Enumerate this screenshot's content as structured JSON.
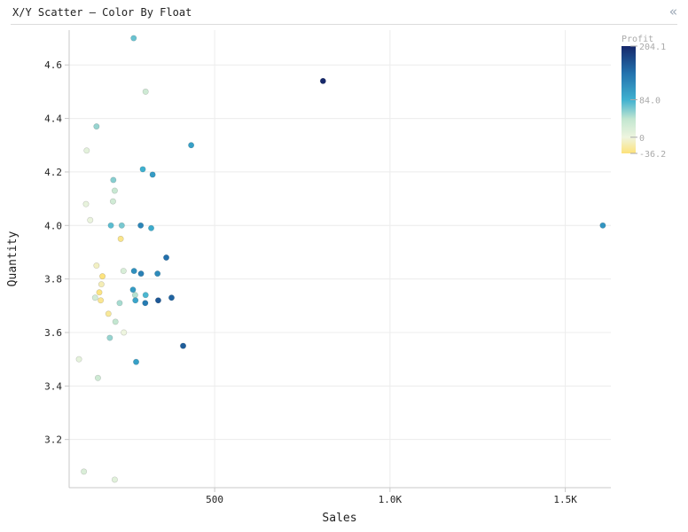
{
  "panel": {
    "title": "X/Y Scatter – Color By Float",
    "collapse_icon": "double-chevron-left-icon"
  },
  "chart_data": {
    "type": "scatter",
    "title": "X/Y Scatter – Color By Float",
    "xlabel": "Sales",
    "ylabel": "Quantity",
    "xlim": [
      85,
      1630
    ],
    "ylim": [
      3.02,
      4.73
    ],
    "x_ticks": [
      {
        "value": 500,
        "label": "500"
      },
      {
        "value": 1000,
        "label": "1.0K"
      },
      {
        "value": 1500,
        "label": "1.5K"
      }
    ],
    "y_ticks": [
      {
        "value": 3.2,
        "label": "3.2"
      },
      {
        "value": 3.4,
        "label": "3.4"
      },
      {
        "value": 3.6,
        "label": "3.6"
      },
      {
        "value": 3.8,
        "label": "3.8"
      },
      {
        "value": 4.0,
        "label": "4.0"
      },
      {
        "value": 4.2,
        "label": "4.2"
      },
      {
        "value": 4.4,
        "label": "4.4"
      },
      {
        "value": 4.6,
        "label": "4.6"
      }
    ],
    "grid": true,
    "color_legend": {
      "title": "Profit",
      "min": -36.2,
      "max": 204.1,
      "labels": [
        {
          "value": 204.1,
          "label": "204.1"
        },
        {
          "value": 84.0,
          "label": "84.0"
        },
        {
          "value": 0,
          "label": "0"
        },
        {
          "value": -36.2,
          "label": "-36.2"
        }
      ],
      "colors": [
        "#fde27a",
        "#eef5df",
        "#c2e6d0",
        "#3fb1d0",
        "#2271ad",
        "#16286b"
      ],
      "placement": "top-right"
    },
    "points": [
      {
        "x": 269,
        "y": 4.7,
        "color": 70
      },
      {
        "x": 303,
        "y": 4.5,
        "color": 30
      },
      {
        "x": 163,
        "y": 4.37,
        "color": 55
      },
      {
        "x": 135,
        "y": 4.28,
        "color": 10
      },
      {
        "x": 433,
        "y": 4.3,
        "color": 100
      },
      {
        "x": 809,
        "y": 4.54,
        "color": 204
      },
      {
        "x": 1607,
        "y": 4.0,
        "color": 110
      },
      {
        "x": 295,
        "y": 4.21,
        "color": 85
      },
      {
        "x": 323,
        "y": 4.19,
        "color": 105
      },
      {
        "x": 211,
        "y": 4.17,
        "color": 60
      },
      {
        "x": 215,
        "y": 4.13,
        "color": 35
      },
      {
        "x": 210,
        "y": 4.09,
        "color": 28
      },
      {
        "x": 133,
        "y": 4.08,
        "color": 5
      },
      {
        "x": 145,
        "y": 4.02,
        "color": 3
      },
      {
        "x": 204,
        "y": 4.0,
        "color": 75
      },
      {
        "x": 235,
        "y": 4.0,
        "color": 65
      },
      {
        "x": 289,
        "y": 4.0,
        "color": 125
      },
      {
        "x": 319,
        "y": 3.99,
        "color": 90
      },
      {
        "x": 232,
        "y": 3.95,
        "color": -30
      },
      {
        "x": 362,
        "y": 3.88,
        "color": 145
      },
      {
        "x": 163,
        "y": 3.85,
        "color": -10
      },
      {
        "x": 240,
        "y": 3.83,
        "color": 20
      },
      {
        "x": 270,
        "y": 3.83,
        "color": 115
      },
      {
        "x": 290,
        "y": 3.82,
        "color": 130
      },
      {
        "x": 337,
        "y": 3.82,
        "color": 120
      },
      {
        "x": 180,
        "y": 3.81,
        "color": -35
      },
      {
        "x": 177,
        "y": 3.78,
        "color": -15
      },
      {
        "x": 267,
        "y": 3.76,
        "color": 105
      },
      {
        "x": 273,
        "y": 3.74,
        "color": 45
      },
      {
        "x": 303,
        "y": 3.74,
        "color": 80
      },
      {
        "x": 377,
        "y": 3.73,
        "color": 155
      },
      {
        "x": 159,
        "y": 3.73,
        "color": 25
      },
      {
        "x": 171,
        "y": 3.75,
        "color": -33
      },
      {
        "x": 175,
        "y": 3.72,
        "color": -28
      },
      {
        "x": 274,
        "y": 3.72,
        "color": 95
      },
      {
        "x": 229,
        "y": 3.71,
        "color": 50
      },
      {
        "x": 302,
        "y": 3.71,
        "color": 135
      },
      {
        "x": 339,
        "y": 3.72,
        "color": 165
      },
      {
        "x": 197,
        "y": 3.67,
        "color": -25
      },
      {
        "x": 217,
        "y": 3.64,
        "color": 40
      },
      {
        "x": 241,
        "y": 3.6,
        "color": 0
      },
      {
        "x": 201,
        "y": 3.58,
        "color": 55
      },
      {
        "x": 410,
        "y": 3.55,
        "color": 160
      },
      {
        "x": 276,
        "y": 3.49,
        "color": 100
      },
      {
        "x": 113,
        "y": 3.5,
        "color": 8
      },
      {
        "x": 167,
        "y": 3.43,
        "color": 30
      },
      {
        "x": 127,
        "y": 3.08,
        "color": 18
      },
      {
        "x": 215,
        "y": 3.05,
        "color": 12
      }
    ]
  }
}
